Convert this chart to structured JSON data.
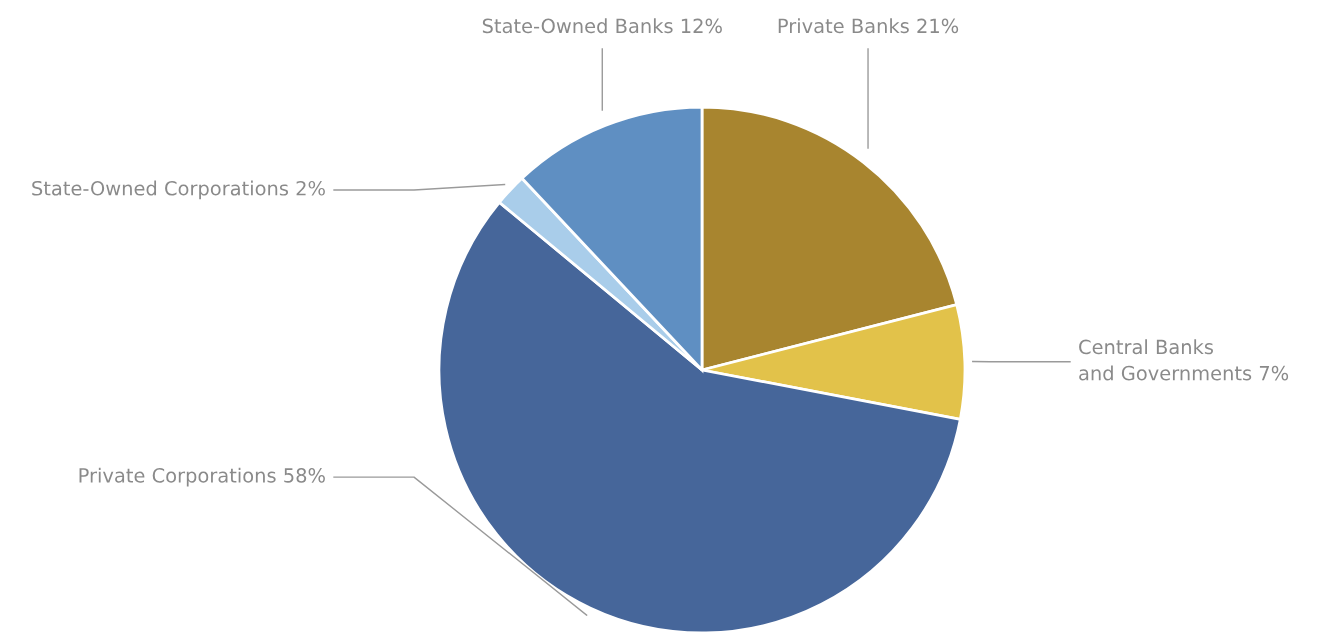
{
  "chart_data": {
    "type": "pie",
    "categories": [
      "Private Banks",
      "Central Banks\nand Governments",
      "Private Corporations",
      "State-Owned Corporations",
      "State-Owned Banks"
    ],
    "values": [
      21,
      7,
      58,
      2,
      12
    ],
    "value_labels": [
      "21%",
      "7%",
      "58%",
      "2%",
      "12%"
    ],
    "colors": [
      "#a8852f",
      "#e2c24a",
      "#46669a",
      "#a9cdea",
      "#5f8fc2"
    ],
    "legend": false
  }
}
